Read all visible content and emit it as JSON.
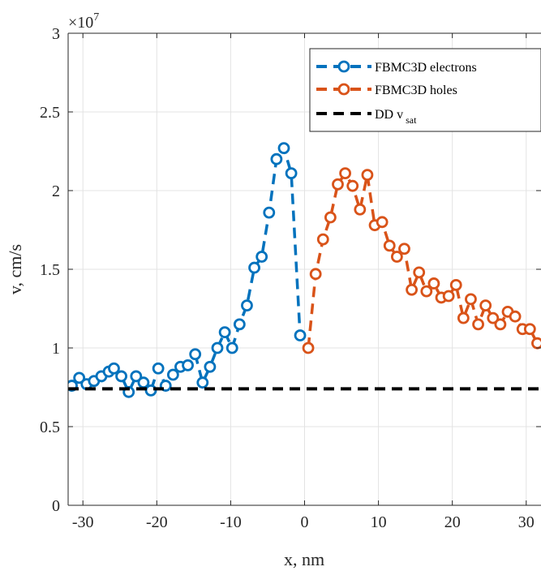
{
  "chart_data": {
    "type": "line",
    "xlabel": "x, nm",
    "ylabel": "v, cm/s",
    "y_multiplier": "×10",
    "y_multiplier_exponent": "7",
    "xlim": [
      -32,
      32
    ],
    "ylim": [
      0,
      3
    ],
    "x_ticks": [
      -30,
      -20,
      -10,
      0,
      10,
      20,
      30
    ],
    "x_tick_labels": [
      "-30",
      "-20",
      "-10",
      "0",
      "10",
      "20",
      "30"
    ],
    "y_ticks": [
      0,
      0.5,
      1,
      1.5,
      2,
      2.5,
      3
    ],
    "y_tick_labels": [
      "0",
      "0.5",
      "1",
      "1.5",
      "2",
      "2.5",
      "3"
    ],
    "grid": true,
    "legend_position": "top-right",
    "series": [
      {
        "name": "FBMC3D electrons",
        "color": "#0072BD",
        "style": "dashed-circle",
        "x": [
          -31.5,
          -30.5,
          -29.5,
          -28.5,
          -27.5,
          -26.5,
          -25.8,
          -24.8,
          -23.8,
          -22.8,
          -21.8,
          -20.8,
          -19.8,
          -18.8,
          -17.8,
          -16.8,
          -15.8,
          -14.8,
          -13.8,
          -12.8,
          -11.8,
          -10.8,
          -9.8,
          -8.8,
          -7.8,
          -6.8,
          -5.8,
          -4.8,
          -3.8,
          -2.8,
          -1.8,
          -0.6
        ],
        "values": [
          0.76,
          0.81,
          0.77,
          0.79,
          0.82,
          0.85,
          0.87,
          0.82,
          0.72,
          0.82,
          0.78,
          0.73,
          0.87,
          0.76,
          0.83,
          0.88,
          0.89,
          0.96,
          0.78,
          0.88,
          1.0,
          1.1,
          1.0,
          1.15,
          1.27,
          1.51,
          1.58,
          1.86,
          2.2,
          2.27,
          2.11,
          1.08
        ]
      },
      {
        "name": "FBMC3D holes",
        "color": "#D95319",
        "style": "dashed-circle",
        "x": [
          0.5,
          1.5,
          2.5,
          3.5,
          4.5,
          5.5,
          6.5,
          7.5,
          8.5,
          9.5,
          10.5,
          11.5,
          12.5,
          13.5,
          14.5,
          15.5,
          16.5,
          17.5,
          18.5,
          19.5,
          20.5,
          21.5,
          22.5,
          23.5,
          24.5,
          25.5,
          26.5,
          27.5,
          28.5,
          29.5,
          30.5,
          31.5
        ],
        "values": [
          1.0,
          1.47,
          1.69,
          1.83,
          2.04,
          2.11,
          2.03,
          1.88,
          2.1,
          1.78,
          1.8,
          1.65,
          1.58,
          1.63,
          1.37,
          1.48,
          1.36,
          1.41,
          1.32,
          1.33,
          1.4,
          1.19,
          1.31,
          1.15,
          1.27,
          1.19,
          1.15,
          1.23,
          1.2,
          1.12,
          1.12,
          1.03
        ]
      },
      {
        "name": "DD v",
        "name_subscript": "sat",
        "color": "#000000",
        "style": "dashed",
        "x": [
          -32,
          32
        ],
        "values": [
          0.74,
          0.74
        ]
      }
    ]
  }
}
